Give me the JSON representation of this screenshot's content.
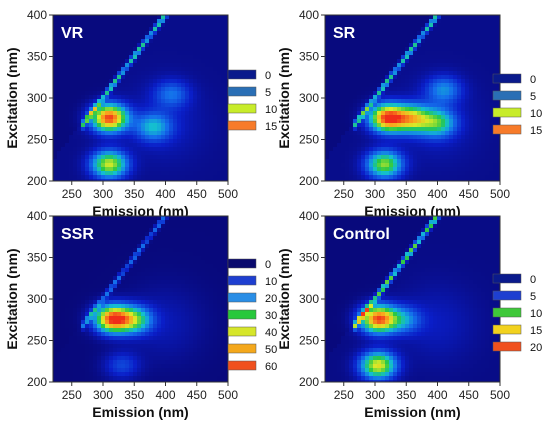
{
  "chart_data": [
    {
      "type": "heatmap",
      "panel_label": "VR",
      "xlabel": "Emission (nm)",
      "ylabel": "Excitation (nm)",
      "xlim": [
        220,
        500
      ],
      "ylim": [
        200,
        400
      ],
      "x_ticks": [
        "250",
        "300",
        "350",
        "400",
        "450",
        "500"
      ],
      "y_ticks": [
        "200",
        "250",
        "300",
        "350",
        "400"
      ],
      "legend": {
        "values": [
          "0",
          "5",
          "10",
          "15"
        ],
        "colors": [
          "#0a1a8c",
          "#2a6fb5",
          "#c8ec2a",
          "#f77b2a"
        ]
      },
      "peaks": [
        {
          "emission": 310,
          "excitation": 276,
          "intensity": 17
        },
        {
          "emission": 310,
          "excitation": 220,
          "intensity": 12
        },
        {
          "emission": 380,
          "excitation": 265,
          "intensity": 6
        },
        {
          "emission": 410,
          "excitation": 305,
          "intensity": 4
        }
      ],
      "scatter_line_intensity": 9,
      "color_max": 18
    },
    {
      "type": "heatmap",
      "panel_label": "SR",
      "xlabel": "Emission (nm)",
      "ylabel": "Excitation (nm)",
      "xlim": [
        220,
        500
      ],
      "ylim": [
        200,
        400
      ],
      "x_ticks": [
        "250",
        "300",
        "350",
        "400",
        "450",
        "500"
      ],
      "y_ticks": [
        "200",
        "250",
        "300",
        "350",
        "400"
      ],
      "legend": {
        "values": [
          "0",
          "5",
          "10",
          "15"
        ],
        "colors": [
          "#0a1a8c",
          "#2a6fb5",
          "#c8ec2a",
          "#f77b2a"
        ]
      },
      "peaks": [
        {
          "emission": 320,
          "excitation": 276,
          "intensity": 17
        },
        {
          "emission": 360,
          "excitation": 275,
          "intensity": 11
        },
        {
          "emission": 315,
          "excitation": 220,
          "intensity": 11
        },
        {
          "emission": 400,
          "excitation": 270,
          "intensity": 8
        },
        {
          "emission": 410,
          "excitation": 310,
          "intensity": 5
        }
      ],
      "scatter_line_intensity": 9,
      "color_max": 18
    },
    {
      "type": "heatmap",
      "panel_label": "SSR",
      "xlabel": "Emission (nm)",
      "ylabel": "Excitation (nm)",
      "xlim": [
        220,
        500
      ],
      "ylim": [
        200,
        400
      ],
      "x_ticks": [
        "250",
        "300",
        "350",
        "400",
        "450",
        "500"
      ],
      "y_ticks": [
        "200",
        "250",
        "300",
        "350",
        "400"
      ],
      "legend": {
        "values": [
          "0",
          "10",
          "20",
          "30",
          "40",
          "50",
          "60"
        ],
        "colors": [
          "#0a0a6e",
          "#1e3fd0",
          "#2a8ee6",
          "#28c83c",
          "#d6e62a",
          "#f4a81c",
          "#f0501e"
        ]
      },
      "peaks": [
        {
          "emission": 315,
          "excitation": 276,
          "intensity": 70
        },
        {
          "emission": 350,
          "excitation": 275,
          "intensity": 38
        },
        {
          "emission": 330,
          "excitation": 220,
          "intensity": 14
        }
      ],
      "scatter_line_intensity": 22,
      "color_max": 75
    },
    {
      "type": "heatmap",
      "panel_label": "Control",
      "xlabel": "Emission (nm)",
      "ylabel": "Excitation (nm)",
      "xlim": [
        220,
        500
      ],
      "ylim": [
        200,
        400
      ],
      "x_ticks": [
        "250",
        "300",
        "350",
        "400",
        "450",
        "500"
      ],
      "y_ticks": [
        "200",
        "250",
        "300",
        "350",
        "400"
      ],
      "legend": {
        "values": [
          "0",
          "5",
          "10",
          "15",
          "20"
        ],
        "colors": [
          "#0a1a8c",
          "#1e3fd0",
          "#3fc83a",
          "#f2d21e",
          "#f0501e"
        ]
      },
      "peaks": [
        {
          "emission": 305,
          "excitation": 276,
          "intensity": 22
        },
        {
          "emission": 305,
          "excitation": 220,
          "intensity": 17
        },
        {
          "emission": 345,
          "excitation": 275,
          "intensity": 7
        }
      ],
      "scatter_line_intensity": 15,
      "color_max": 24
    }
  ]
}
